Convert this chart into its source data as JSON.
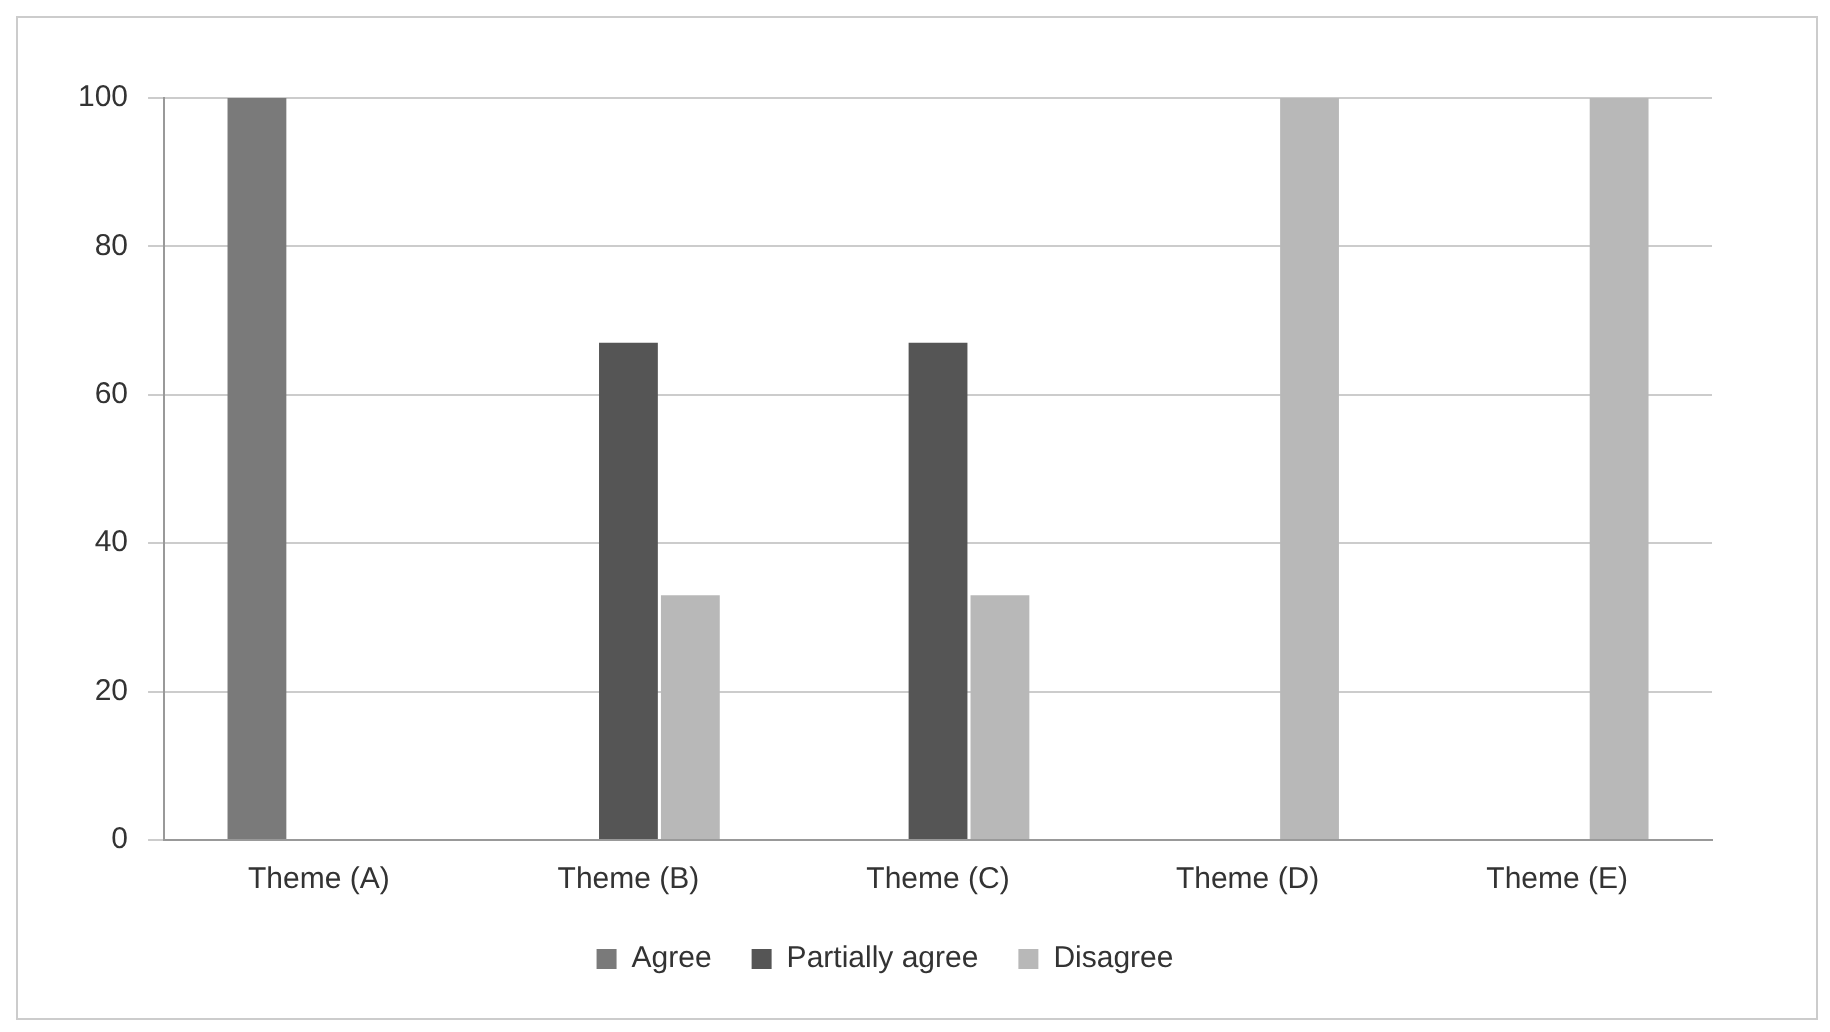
{
  "chart_data": {
    "type": "bar",
    "categories": [
      "Theme (A)",
      "Theme (B)",
      "Theme (C)",
      "Theme (D)",
      "Theme (E)"
    ],
    "series": [
      {
        "name": "Agree",
        "color": "#7a7a7a",
        "values": [
          100,
          0,
          0,
          0,
          0
        ]
      },
      {
        "name": "Partially agree",
        "color": "#555555",
        "values": [
          0,
          67,
          67,
          0,
          0
        ]
      },
      {
        "name": "Disagree",
        "color": "#b8b8b8",
        "values": [
          0,
          33,
          33,
          100,
          100
        ]
      }
    ],
    "ylim": [
      0,
      100
    ],
    "yticks": [
      0,
      20,
      40,
      60,
      80,
      100
    ],
    "grid": "y",
    "legend": "bottom"
  }
}
